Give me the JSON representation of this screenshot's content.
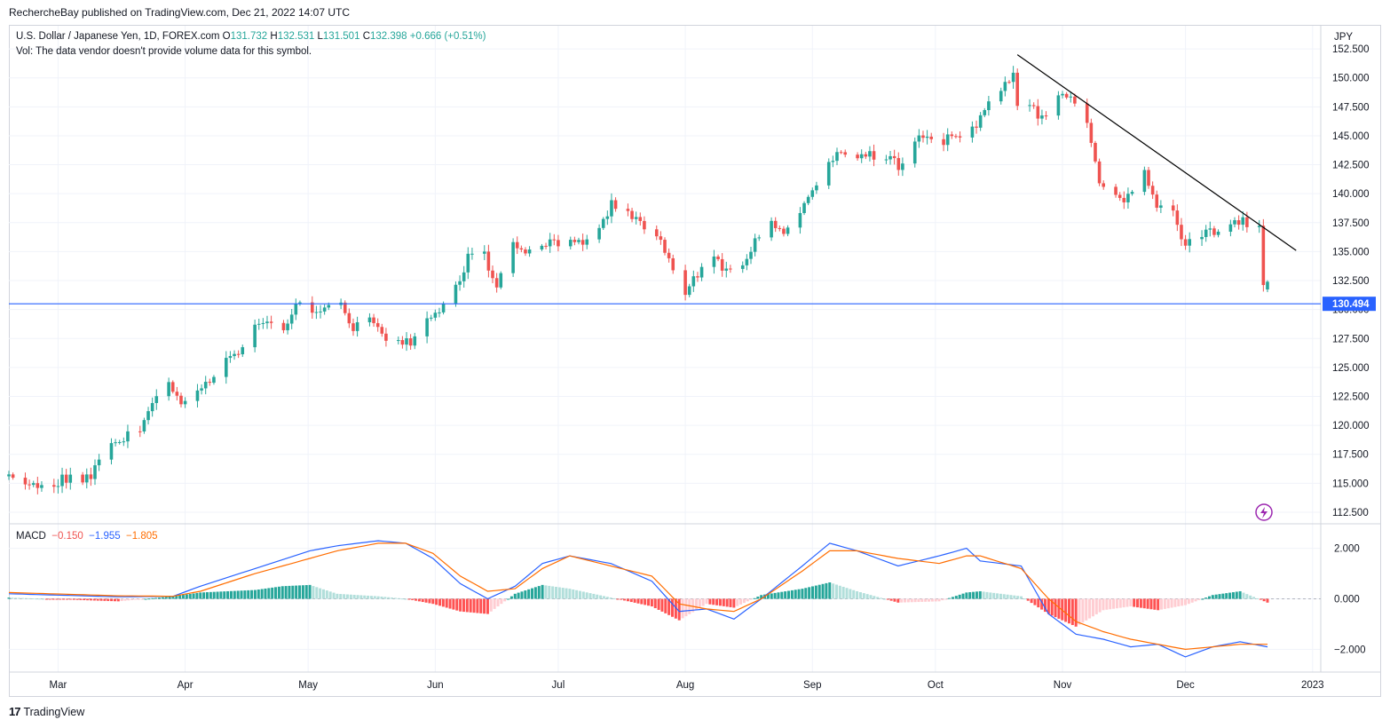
{
  "header": {
    "publish_line": "RechercheBay published on TradingView.com, Dec 21, 2022 14:07 UTC"
  },
  "legend": {
    "symbol": "U.S. Dollar / Japanese Yen, 1D, FOREX.com",
    "o_label": "O",
    "o": "131.732",
    "h_label": "H",
    "h": "132.531",
    "l_label": "L",
    "l": "131.501",
    "c_label": "C",
    "c": "132.398",
    "change": "+0.666 (+0.51%)",
    "volume_note": "Vol: The data vendor doesn't provide volume data for this symbol."
  },
  "macd_legend": {
    "name": "MACD",
    "hist": "−0.150",
    "macd": "−1.955",
    "signal": "−1.805"
  },
  "footer": {
    "brand": "TradingView",
    "logo_mark": "17"
  },
  "colors": {
    "up": "#26a69a",
    "down": "#ef5350",
    "macd_line": "#2962ff",
    "signal_line": "#ff6d00",
    "hline": "#2962ff",
    "trend": "#000000",
    "grid": "#f0f3fa"
  },
  "chart_data": [
    {
      "type": "candlestick",
      "title": "U.S. Dollar / Japanese Yen, 1D, FOREX.com",
      "currency_label": "JPY",
      "y_ticks": [
        "152.500",
        "150.000",
        "147.500",
        "145.000",
        "142.500",
        "140.000",
        "137.500",
        "135.000",
        "132.500",
        "130.000",
        "127.500",
        "125.000",
        "122.500",
        "120.000",
        "117.500",
        "115.000",
        "112.500"
      ],
      "ylim": [
        111.5,
        154.5
      ],
      "x_ticks": [
        "Mar",
        "Apr",
        "May",
        "Jun",
        "Jul",
        "Aug",
        "Sep",
        "Oct",
        "Nov",
        "Dec",
        "2023"
      ],
      "x_range": [
        "2022-02-17",
        "2023-01-03"
      ],
      "horizontal_line": {
        "value": 130.494,
        "label": "130.494"
      },
      "trendline": {
        "from": {
          "date": "2022-10-21",
          "value": 152.0
        },
        "to": {
          "date": "2022-12-28",
          "value": 135.1
        }
      },
      "closes": [
        [
          "2022-02-17",
          115.6
        ],
        [
          "2022-02-21",
          115.2
        ],
        [
          "2022-02-24",
          115.0
        ],
        [
          "2022-02-28",
          115.1
        ],
        [
          "2022-03-03",
          115.4
        ],
        [
          "2022-03-07",
          115.0
        ],
        [
          "2022-03-10",
          116.2
        ],
        [
          "2022-03-14",
          118.2
        ],
        [
          "2022-03-17",
          118.8
        ],
        [
          "2022-03-21",
          119.8
        ],
        [
          "2022-03-24",
          121.6
        ],
        [
          "2022-03-28",
          123.5
        ],
        [
          "2022-03-31",
          121.7
        ],
        [
          "2022-04-04",
          122.6
        ],
        [
          "2022-04-07",
          123.8
        ],
        [
          "2022-04-11",
          125.4
        ],
        [
          "2022-04-14",
          126.3
        ],
        [
          "2022-04-18",
          128.4
        ],
        [
          "2022-04-21",
          128.6
        ],
        [
          "2022-04-25",
          128.1
        ],
        [
          "2022-04-28",
          130.8
        ],
        [
          "2022-05-02",
          130.1
        ],
        [
          "2022-05-05",
          130.3
        ],
        [
          "2022-05-09",
          130.4
        ],
        [
          "2022-05-12",
          128.4
        ],
        [
          "2022-05-16",
          129.1
        ],
        [
          "2022-05-19",
          127.8
        ],
        [
          "2022-05-23",
          127.2
        ],
        [
          "2022-05-26",
          127.1
        ],
        [
          "2022-05-30",
          128.8
        ],
        [
          "2022-06-02",
          130.0
        ],
        [
          "2022-06-06",
          132.0
        ],
        [
          "2022-06-09",
          134.4
        ],
        [
          "2022-06-13",
          134.6
        ],
        [
          "2022-06-16",
          132.2
        ],
        [
          "2022-06-20",
          136.0
        ],
        [
          "2022-06-23",
          134.9
        ],
        [
          "2022-06-27",
          135.5
        ],
        [
          "2022-06-30",
          135.7
        ],
        [
          "2022-07-04",
          135.9
        ],
        [
          "2022-07-07",
          136.0
        ],
        [
          "2022-07-11",
          137.2
        ],
        [
          "2022-07-14",
          139.0
        ],
        [
          "2022-07-18",
          138.2
        ],
        [
          "2022-07-21",
          137.4
        ],
        [
          "2022-07-25",
          136.5
        ],
        [
          "2022-07-28",
          134.2
        ],
        [
          "2022-08-01",
          131.6
        ],
        [
          "2022-08-04",
          133.0
        ],
        [
          "2022-08-08",
          135.0
        ],
        [
          "2022-08-11",
          133.1
        ],
        [
          "2022-08-15",
          134.0
        ],
        [
          "2022-08-18",
          135.9
        ],
        [
          "2022-08-22",
          137.5
        ],
        [
          "2022-08-25",
          136.6
        ],
        [
          "2022-08-29",
          138.7
        ],
        [
          "2022-09-01",
          140.2
        ],
        [
          "2022-09-05",
          142.9
        ],
        [
          "2022-09-08",
          143.6
        ],
        [
          "2022-09-12",
          143.0
        ],
        [
          "2022-09-15",
          143.4
        ],
        [
          "2022-09-19",
          143.2
        ],
        [
          "2022-09-22",
          142.4
        ],
        [
          "2022-09-26",
          144.7
        ],
        [
          "2022-09-29",
          144.5
        ],
        [
          "2022-10-03",
          144.6
        ],
        [
          "2022-10-06",
          145.0
        ],
        [
          "2022-10-10",
          145.5
        ],
        [
          "2022-10-13",
          147.2
        ],
        [
          "2022-10-17",
          149.0
        ],
        [
          "2022-10-20",
          150.0
        ],
        [
          "2022-10-21",
          147.8
        ],
        [
          "2022-10-24",
          148.0
        ],
        [
          "2022-10-27",
          146.4
        ],
        [
          "2022-10-31",
          148.7
        ],
        [
          "2022-11-03",
          148.1
        ],
        [
          "2022-11-07",
          146.4
        ],
        [
          "2022-11-10",
          141.0
        ],
        [
          "2022-11-14",
          139.8
        ],
        [
          "2022-11-17",
          139.6
        ],
        [
          "2022-11-21",
          141.9
        ],
        [
          "2022-11-24",
          138.6
        ],
        [
          "2022-11-28",
          138.9
        ],
        [
          "2022-12-01",
          135.3
        ],
        [
          "2022-12-05",
          136.7
        ],
        [
          "2022-12-08",
          136.5
        ],
        [
          "2022-12-12",
          137.6
        ],
        [
          "2022-12-15",
          137.6
        ],
        [
          "2022-12-19",
          136.9
        ],
        [
          "2022-12-20",
          131.7
        ],
        [
          "2022-12-21",
          132.4
        ]
      ],
      "last_price": {
        "open": 131.732,
        "high": 132.531,
        "low": 131.501,
        "close": 132.398,
        "change": 0.666,
        "change_pct": 0.51
      }
    },
    {
      "type": "macd",
      "title": "MACD",
      "y_ticks": [
        "2.000",
        "0.000",
        "−2.000"
      ],
      "ylim": [
        -2.9,
        2.9
      ],
      "series": [
        {
          "name": "MACD",
          "values": [
            [
              0,
              0.2
            ],
            [
              8,
              0.08
            ],
            [
              12,
              0.1
            ],
            [
              14,
              0.5
            ],
            [
              18,
              1.2
            ],
            [
              22,
              1.9
            ],
            [
              24,
              2.1
            ],
            [
              27,
              2.3
            ],
            [
              29,
              2.2
            ],
            [
              31,
              1.6
            ],
            [
              33,
              0.6
            ],
            [
              35,
              0.0
            ],
            [
              37,
              0.5
            ],
            [
              39,
              1.4
            ],
            [
              41,
              1.7
            ],
            [
              44,
              1.4
            ],
            [
              47,
              0.7
            ],
            [
              49,
              -0.5
            ],
            [
              51,
              -0.4
            ],
            [
              53,
              -0.8
            ],
            [
              55,
              0.0
            ],
            [
              58,
              1.3
            ],
            [
              60,
              2.2
            ],
            [
              62,
              1.9
            ],
            [
              65,
              1.3
            ],
            [
              68,
              1.7
            ],
            [
              70,
              2.0
            ],
            [
              71,
              1.5
            ],
            [
              74,
              1.3
            ],
            [
              76,
              -0.6
            ],
            [
              78,
              -1.4
            ],
            [
              80,
              -1.6
            ],
            [
              82,
              -1.9
            ],
            [
              84,
              -1.8
            ],
            [
              86,
              -2.3
            ],
            [
              88,
              -1.9
            ],
            [
              90,
              -1.7
            ],
            [
              92,
              -1.9
            ]
          ]
        },
        {
          "name": "Signal",
          "values": [
            [
              0,
              0.25
            ],
            [
              8,
              0.12
            ],
            [
              12,
              0.1
            ],
            [
              14,
              0.3
            ],
            [
              18,
              1.0
            ],
            [
              22,
              1.6
            ],
            [
              24,
              1.9
            ],
            [
              27,
              2.2
            ],
            [
              29,
              2.2
            ],
            [
              31,
              1.8
            ],
            [
              33,
              0.9
            ],
            [
              35,
              0.3
            ],
            [
              37,
              0.4
            ],
            [
              39,
              1.2
            ],
            [
              41,
              1.7
            ],
            [
              44,
              1.3
            ],
            [
              47,
              0.9
            ],
            [
              49,
              -0.2
            ],
            [
              51,
              -0.4
            ],
            [
              53,
              -0.5
            ],
            [
              55,
              0.0
            ],
            [
              58,
              1.1
            ],
            [
              60,
              1.9
            ],
            [
              62,
              1.9
            ],
            [
              65,
              1.6
            ],
            [
              68,
              1.4
            ],
            [
              70,
              1.7
            ],
            [
              71,
              1.7
            ],
            [
              74,
              1.2
            ],
            [
              76,
              0.0
            ],
            [
              78,
              -0.9
            ],
            [
              80,
              -1.3
            ],
            [
              82,
              -1.6
            ],
            [
              84,
              -1.8
            ],
            [
              86,
              -2.0
            ],
            [
              88,
              -1.9
            ],
            [
              90,
              -1.8
            ],
            [
              92,
              -1.8
            ]
          ]
        },
        {
          "name": "Histogram",
          "values": [
            [
              0,
              0.05
            ],
            [
              8,
              -0.1
            ],
            [
              12,
              0.1
            ],
            [
              14,
              0.25
            ],
            [
              18,
              0.35
            ],
            [
              20,
              0.5
            ],
            [
              22,
              0.55
            ],
            [
              24,
              0.2
            ],
            [
              27,
              0.1
            ],
            [
              29,
              0.0
            ],
            [
              31,
              -0.2
            ],
            [
              33,
              -0.5
            ],
            [
              35,
              -0.6
            ],
            [
              37,
              0.2
            ],
            [
              39,
              0.55
            ],
            [
              41,
              0.4
            ],
            [
              44,
              0.05
            ],
            [
              47,
              -0.3
            ],
            [
              49,
              -0.85
            ],
            [
              51,
              -0.2
            ],
            [
              53,
              -0.35
            ],
            [
              55,
              0.15
            ],
            [
              58,
              0.4
            ],
            [
              60,
              0.65
            ],
            [
              62,
              0.3
            ],
            [
              65,
              -0.15
            ],
            [
              68,
              -0.1
            ],
            [
              70,
              0.25
            ],
            [
              71,
              0.3
            ],
            [
              74,
              0.1
            ],
            [
              76,
              -0.6
            ],
            [
              78,
              -1.1
            ],
            [
              80,
              -0.45
            ],
            [
              82,
              -0.3
            ],
            [
              84,
              -0.45
            ],
            [
              86,
              -0.25
            ],
            [
              88,
              0.15
            ],
            [
              90,
              0.3
            ],
            [
              92,
              -0.15
            ]
          ]
        }
      ]
    }
  ]
}
